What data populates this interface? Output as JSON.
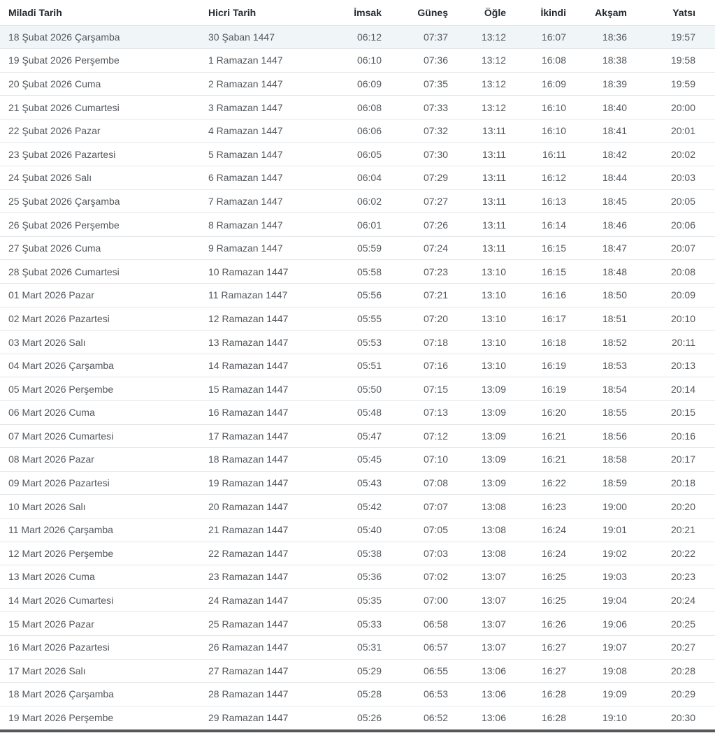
{
  "table": {
    "columns": [
      {
        "key": "miladi",
        "label": "Miladi Tarih"
      },
      {
        "key": "hicri",
        "label": "Hicri Tarih"
      },
      {
        "key": "imsak",
        "label": "İmsak"
      },
      {
        "key": "gunes",
        "label": "Güneş"
      },
      {
        "key": "ogle",
        "label": "Öğle"
      },
      {
        "key": "ikindi",
        "label": "İkindi"
      },
      {
        "key": "aksam",
        "label": "Akşam"
      },
      {
        "key": "yatsi",
        "label": "Yatsı"
      }
    ],
    "highlighted_row_index": 0,
    "rows": [
      {
        "miladi": "18 Şubat 2026 Çarşamba",
        "hicri": "30 Şaban 1447",
        "imsak": "06:12",
        "gunes": "07:37",
        "ogle": "13:12",
        "ikindi": "16:07",
        "aksam": "18:36",
        "yatsi": "19:57"
      },
      {
        "miladi": "19 Şubat 2026 Perşembe",
        "hicri": "1 Ramazan 1447",
        "imsak": "06:10",
        "gunes": "07:36",
        "ogle": "13:12",
        "ikindi": "16:08",
        "aksam": "18:38",
        "yatsi": "19:58"
      },
      {
        "miladi": "20 Şubat 2026 Cuma",
        "hicri": "2 Ramazan 1447",
        "imsak": "06:09",
        "gunes": "07:35",
        "ogle": "13:12",
        "ikindi": "16:09",
        "aksam": "18:39",
        "yatsi": "19:59"
      },
      {
        "miladi": "21 Şubat 2026 Cumartesi",
        "hicri": "3 Ramazan 1447",
        "imsak": "06:08",
        "gunes": "07:33",
        "ogle": "13:12",
        "ikindi": "16:10",
        "aksam": "18:40",
        "yatsi": "20:00"
      },
      {
        "miladi": "22 Şubat 2026 Pazar",
        "hicri": "4 Ramazan 1447",
        "imsak": "06:06",
        "gunes": "07:32",
        "ogle": "13:11",
        "ikindi": "16:10",
        "aksam": "18:41",
        "yatsi": "20:01"
      },
      {
        "miladi": "23 Şubat 2026 Pazartesi",
        "hicri": "5 Ramazan 1447",
        "imsak": "06:05",
        "gunes": "07:30",
        "ogle": "13:11",
        "ikindi": "16:11",
        "aksam": "18:42",
        "yatsi": "20:02"
      },
      {
        "miladi": "24 Şubat 2026 Salı",
        "hicri": "6 Ramazan 1447",
        "imsak": "06:04",
        "gunes": "07:29",
        "ogle": "13:11",
        "ikindi": "16:12",
        "aksam": "18:44",
        "yatsi": "20:03"
      },
      {
        "miladi": "25 Şubat 2026 Çarşamba",
        "hicri": "7 Ramazan 1447",
        "imsak": "06:02",
        "gunes": "07:27",
        "ogle": "13:11",
        "ikindi": "16:13",
        "aksam": "18:45",
        "yatsi": "20:05"
      },
      {
        "miladi": "26 Şubat 2026 Perşembe",
        "hicri": "8 Ramazan 1447",
        "imsak": "06:01",
        "gunes": "07:26",
        "ogle": "13:11",
        "ikindi": "16:14",
        "aksam": "18:46",
        "yatsi": "20:06"
      },
      {
        "miladi": "27 Şubat 2026 Cuma",
        "hicri": "9 Ramazan 1447",
        "imsak": "05:59",
        "gunes": "07:24",
        "ogle": "13:11",
        "ikindi": "16:15",
        "aksam": "18:47",
        "yatsi": "20:07"
      },
      {
        "miladi": "28 Şubat 2026 Cumartesi",
        "hicri": "10 Ramazan 1447",
        "imsak": "05:58",
        "gunes": "07:23",
        "ogle": "13:10",
        "ikindi": "16:15",
        "aksam": "18:48",
        "yatsi": "20:08"
      },
      {
        "miladi": "01 Mart 2026 Pazar",
        "hicri": "11 Ramazan 1447",
        "imsak": "05:56",
        "gunes": "07:21",
        "ogle": "13:10",
        "ikindi": "16:16",
        "aksam": "18:50",
        "yatsi": "20:09"
      },
      {
        "miladi": "02 Mart 2026 Pazartesi",
        "hicri": "12 Ramazan 1447",
        "imsak": "05:55",
        "gunes": "07:20",
        "ogle": "13:10",
        "ikindi": "16:17",
        "aksam": "18:51",
        "yatsi": "20:10"
      },
      {
        "miladi": "03 Mart 2026 Salı",
        "hicri": "13 Ramazan 1447",
        "imsak": "05:53",
        "gunes": "07:18",
        "ogle": "13:10",
        "ikindi": "16:18",
        "aksam": "18:52",
        "yatsi": "20:11"
      },
      {
        "miladi": "04 Mart 2026 Çarşamba",
        "hicri": "14 Ramazan 1447",
        "imsak": "05:51",
        "gunes": "07:16",
        "ogle": "13:10",
        "ikindi": "16:19",
        "aksam": "18:53",
        "yatsi": "20:13"
      },
      {
        "miladi": "05 Mart 2026 Perşembe",
        "hicri": "15 Ramazan 1447",
        "imsak": "05:50",
        "gunes": "07:15",
        "ogle": "13:09",
        "ikindi": "16:19",
        "aksam": "18:54",
        "yatsi": "20:14"
      },
      {
        "miladi": "06 Mart 2026 Cuma",
        "hicri": "16 Ramazan 1447",
        "imsak": "05:48",
        "gunes": "07:13",
        "ogle": "13:09",
        "ikindi": "16:20",
        "aksam": "18:55",
        "yatsi": "20:15"
      },
      {
        "miladi": "07 Mart 2026 Cumartesi",
        "hicri": "17 Ramazan 1447",
        "imsak": "05:47",
        "gunes": "07:12",
        "ogle": "13:09",
        "ikindi": "16:21",
        "aksam": "18:56",
        "yatsi": "20:16"
      },
      {
        "miladi": "08 Mart 2026 Pazar",
        "hicri": "18 Ramazan 1447",
        "imsak": "05:45",
        "gunes": "07:10",
        "ogle": "13:09",
        "ikindi": "16:21",
        "aksam": "18:58",
        "yatsi": "20:17"
      },
      {
        "miladi": "09 Mart 2026 Pazartesi",
        "hicri": "19 Ramazan 1447",
        "imsak": "05:43",
        "gunes": "07:08",
        "ogle": "13:09",
        "ikindi": "16:22",
        "aksam": "18:59",
        "yatsi": "20:18"
      },
      {
        "miladi": "10 Mart 2026 Salı",
        "hicri": "20 Ramazan 1447",
        "imsak": "05:42",
        "gunes": "07:07",
        "ogle": "13:08",
        "ikindi": "16:23",
        "aksam": "19:00",
        "yatsi": "20:20"
      },
      {
        "miladi": "11 Mart 2026 Çarşamba",
        "hicri": "21 Ramazan 1447",
        "imsak": "05:40",
        "gunes": "07:05",
        "ogle": "13:08",
        "ikindi": "16:24",
        "aksam": "19:01",
        "yatsi": "20:21"
      },
      {
        "miladi": "12 Mart 2026 Perşembe",
        "hicri": "22 Ramazan 1447",
        "imsak": "05:38",
        "gunes": "07:03",
        "ogle": "13:08",
        "ikindi": "16:24",
        "aksam": "19:02",
        "yatsi": "20:22"
      },
      {
        "miladi": "13 Mart 2026 Cuma",
        "hicri": "23 Ramazan 1447",
        "imsak": "05:36",
        "gunes": "07:02",
        "ogle": "13:07",
        "ikindi": "16:25",
        "aksam": "19:03",
        "yatsi": "20:23"
      },
      {
        "miladi": "14 Mart 2026 Cumartesi",
        "hicri": "24 Ramazan 1447",
        "imsak": "05:35",
        "gunes": "07:00",
        "ogle": "13:07",
        "ikindi": "16:25",
        "aksam": "19:04",
        "yatsi": "20:24"
      },
      {
        "miladi": "15 Mart 2026 Pazar",
        "hicri": "25 Ramazan 1447",
        "imsak": "05:33",
        "gunes": "06:58",
        "ogle": "13:07",
        "ikindi": "16:26",
        "aksam": "19:06",
        "yatsi": "20:25"
      },
      {
        "miladi": "16 Mart 2026 Pazartesi",
        "hicri": "26 Ramazan 1447",
        "imsak": "05:31",
        "gunes": "06:57",
        "ogle": "13:07",
        "ikindi": "16:27",
        "aksam": "19:07",
        "yatsi": "20:27"
      },
      {
        "miladi": "17 Mart 2026 Salı",
        "hicri": "27 Ramazan 1447",
        "imsak": "05:29",
        "gunes": "06:55",
        "ogle": "13:06",
        "ikindi": "16:27",
        "aksam": "19:08",
        "yatsi": "20:28"
      },
      {
        "miladi": "18 Mart 2026 Çarşamba",
        "hicri": "28 Ramazan 1447",
        "imsak": "05:28",
        "gunes": "06:53",
        "ogle": "13:06",
        "ikindi": "16:28",
        "aksam": "19:09",
        "yatsi": "20:29"
      },
      {
        "miladi": "19 Mart 2026 Perşembe",
        "hicri": "29 Ramazan 1447",
        "imsak": "05:26",
        "gunes": "06:52",
        "ogle": "13:06",
        "ikindi": "16:28",
        "aksam": "19:10",
        "yatsi": "20:30"
      }
    ]
  },
  "colors": {
    "highlight_row_bg": "#f0f6f8",
    "row_border": "#e4e7e9",
    "header_text": "#24292f",
    "body_text": "#52575c",
    "bottom_bar": "#56585b"
  }
}
